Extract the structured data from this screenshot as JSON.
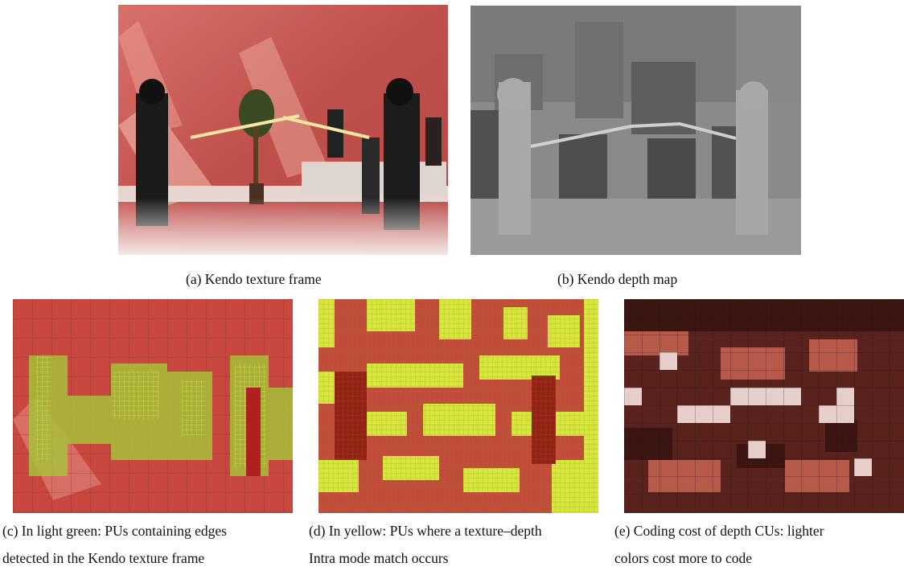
{
  "figure": {
    "subfigures": [
      {
        "id": "a",
        "caption": "(a) Kendo texture frame"
      },
      {
        "id": "b",
        "caption": "(b) Kendo depth map"
      },
      {
        "id": "c",
        "caption_lines": [
          "(c) In light green: PUs containing edges",
          "detected in the Kendo texture frame"
        ]
      },
      {
        "id": "d",
        "caption_lines": [
          "(d) In yellow: PUs where a texture–depth",
          "Intra mode match occurs"
        ]
      },
      {
        "id": "e",
        "caption_lines": [
          "(e) Coding cost of depth CUs: lighter",
          "colors cost more to code"
        ]
      }
    ],
    "colors": {
      "texture_bg": "#c8534f",
      "depth_bg": "#8a8a8a",
      "edge_highlight": "#a8c83a",
      "match_highlight": "#d6e63a",
      "cost_dark": "#3a1512",
      "cost_light": "#e8d0cc"
    }
  }
}
